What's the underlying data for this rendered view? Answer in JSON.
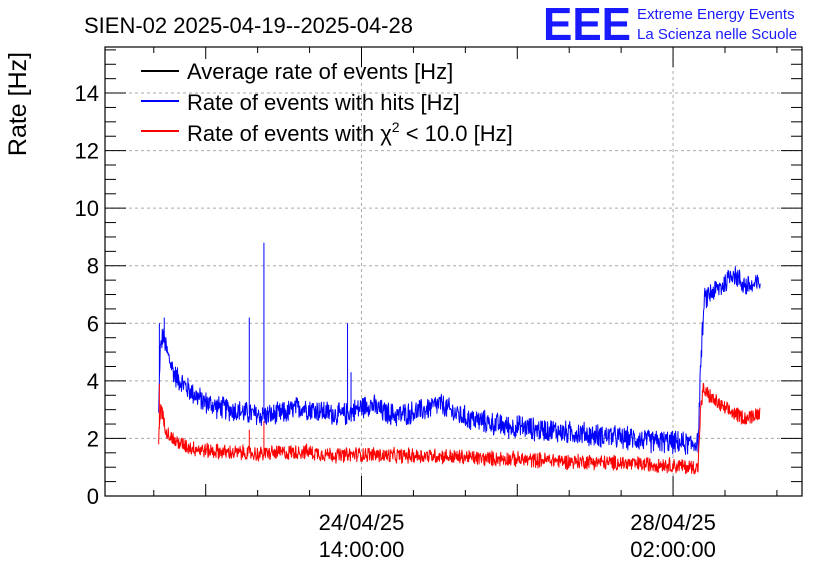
{
  "chart_data": {
    "type": "line",
    "title": "SIEN-02 2025-04-19--2025-04-28",
    "ylabel": "Rate [Hz]",
    "xlabel": "",
    "ylim": [
      0,
      15.6
    ],
    "xlim": [
      0,
      100
    ],
    "yticks": [
      0,
      2,
      4,
      6,
      8,
      10,
      12,
      14
    ],
    "ytick_labels": [
      "0",
      "2",
      "4",
      "6",
      "8",
      "10",
      "12",
      "14"
    ],
    "xticks": [
      {
        "x": 36.8,
        "line1": "24/04/25",
        "line2": "14:00:00"
      },
      {
        "x": 81.5,
        "line1": "28/04/25",
        "line2": "02:00:00"
      }
    ],
    "grid": true,
    "legend_position": "top-left",
    "legend": [
      {
        "label": "Average rate of events [Hz]",
        "color": "#000000"
      },
      {
        "label": "Rate of events with hits [Hz]",
        "color": "#0000ff"
      },
      {
        "label_prefix": "Rate of events with ",
        "label_symbol": "χ",
        "label_sup": "2",
        "label_suffix": " < 10.0 [Hz]",
        "color": "#ff0000"
      }
    ],
    "series": [
      {
        "name": "Rate of events with hits [Hz]",
        "color": "#0000ff",
        "noise": 0.45,
        "x": [
          7.7,
          7.9,
          8.3,
          9,
          10,
          12,
          14,
          16,
          18,
          20,
          22,
          24,
          26,
          28,
          30,
          32,
          34,
          36,
          38,
          40,
          42,
          44,
          46,
          48,
          50,
          52,
          54,
          56,
          58,
          60,
          62,
          64,
          66,
          68,
          70,
          72,
          74,
          76,
          78,
          80,
          82,
          84,
          85.1,
          85.5,
          86,
          87,
          88,
          89,
          89.5,
          90,
          91,
          92,
          93,
          94
        ],
        "y": [
          2.8,
          5.0,
          5.6,
          4.9,
          4.2,
          3.7,
          3.3,
          3.1,
          3.0,
          2.9,
          2.8,
          2.8,
          2.9,
          3.1,
          3.0,
          2.9,
          2.8,
          3.0,
          3.2,
          2.9,
          2.8,
          2.9,
          3.0,
          3.2,
          2.9,
          2.7,
          2.6,
          2.5,
          2.4,
          2.4,
          2.3,
          2.3,
          2.2,
          2.2,
          2.1,
          2.1,
          2.0,
          2.0,
          1.9,
          1.9,
          1.85,
          1.8,
          1.9,
          4.8,
          6.8,
          7.1,
          7.2,
          7.4,
          7.6,
          7.8,
          7.5,
          7.3,
          7.3,
          7.4
        ],
        "spikes": [
          [
            7.8,
            6.0
          ],
          [
            8.5,
            6.2
          ],
          [
            20.7,
            6.2
          ],
          [
            22.8,
            8.8
          ],
          [
            34.8,
            6.0
          ],
          [
            35.3,
            4.3
          ]
        ]
      },
      {
        "name": "Rate of events with χ2 < 10.0 [Hz]",
        "color": "#ff0000",
        "noise": 0.3,
        "x": [
          7.7,
          8.0,
          8.4,
          9,
          10,
          12,
          14,
          16,
          18,
          20,
          22,
          24,
          26,
          28,
          30,
          32,
          34,
          36,
          38,
          40,
          42,
          44,
          46,
          48,
          50,
          52,
          54,
          56,
          58,
          60,
          62,
          64,
          66,
          68,
          70,
          72,
          74,
          76,
          78,
          80,
          82,
          84,
          85.1,
          85.4,
          85.8,
          87,
          88,
          89,
          90,
          91,
          92,
          93,
          94
        ],
        "y": [
          1.9,
          3.2,
          2.6,
          2.2,
          1.9,
          1.7,
          1.6,
          1.55,
          1.5,
          1.5,
          1.45,
          1.5,
          1.5,
          1.55,
          1.5,
          1.45,
          1.4,
          1.45,
          1.45,
          1.4,
          1.4,
          1.4,
          1.4,
          1.4,
          1.35,
          1.35,
          1.3,
          1.3,
          1.3,
          1.25,
          1.25,
          1.25,
          1.2,
          1.2,
          1.2,
          1.15,
          1.15,
          1.1,
          1.1,
          1.1,
          1.05,
          1.0,
          1.0,
          2.8,
          3.7,
          3.4,
          3.2,
          3.0,
          2.9,
          2.8,
          2.7,
          2.8,
          2.9
        ],
        "spikes": [
          [
            7.8,
            3.9
          ],
          [
            20.7,
            2.3
          ],
          [
            22.8,
            2.6
          ]
        ]
      }
    ]
  },
  "logo": {
    "mark": "EEE",
    "line1": "Extreme Energy Events",
    "line2": "La Scienza nelle Scuole"
  }
}
